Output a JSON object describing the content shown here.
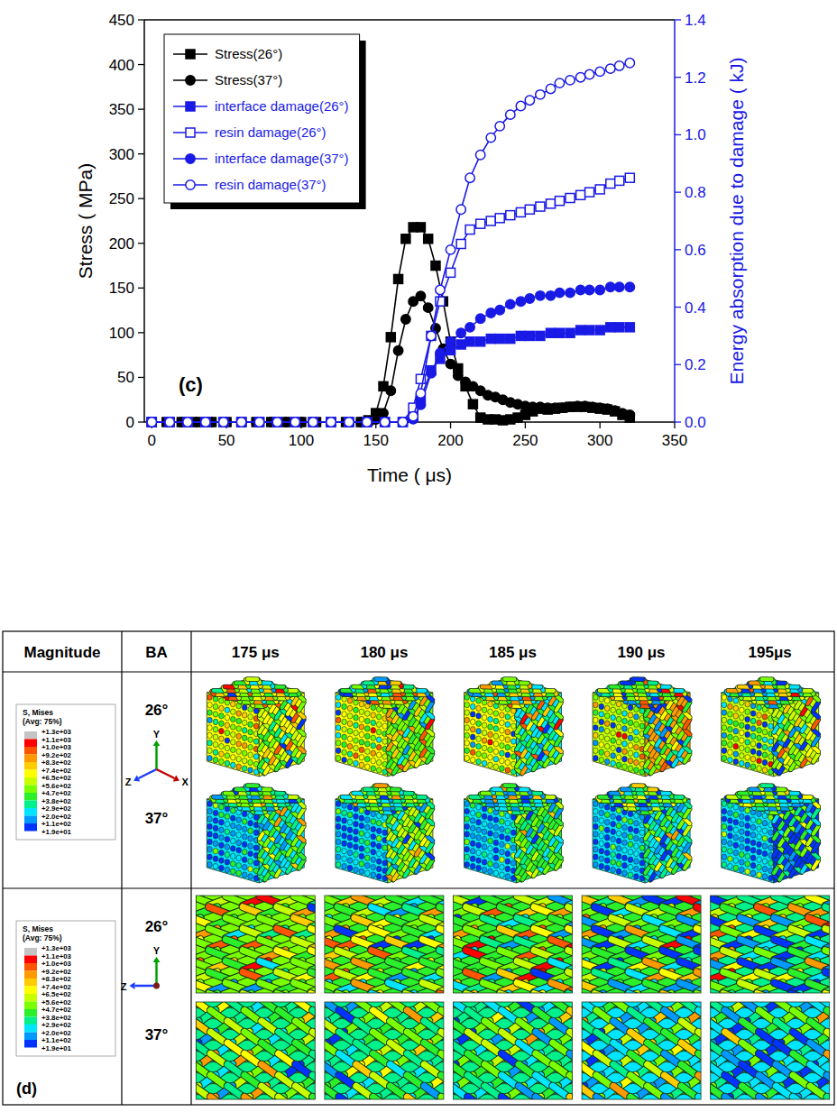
{
  "chart_data": {
    "type": "line",
    "panel_label": "(c)",
    "x_label": "Time ( μs)",
    "y_label": "Stress ( MPa)",
    "y2_label": "Energy absorption due to damage ( kJ)",
    "xlim": [
      -5,
      350
    ],
    "xticks": [
      0,
      50,
      100,
      150,
      200,
      250,
      300,
      350
    ],
    "ylim": [
      0,
      450
    ],
    "yticks": [
      0,
      50,
      100,
      150,
      200,
      250,
      300,
      350,
      400,
      450
    ],
    "y2lim": [
      0,
      1.4
    ],
    "y2ticks": [
      {
        "value": 0,
        "label": "0.0"
      },
      0.2,
      0.4,
      0.6,
      0.8,
      {
        "value": 1,
        "label": "1.0"
      },
      1.2,
      1.4
    ],
    "grid": false,
    "legend": "upper left",
    "series": [
      {
        "name": "Stress(26°)",
        "color": "#000000",
        "marker": "square",
        "x": [
          0,
          10,
          20,
          30,
          40,
          50,
          60,
          70,
          80,
          90,
          100,
          110,
          120,
          130,
          140,
          145,
          150,
          155,
          160,
          165,
          170,
          175,
          180,
          185,
          190,
          195,
          200,
          205,
          210,
          215,
          220,
          225,
          230,
          235,
          240,
          245,
          250,
          255,
          260,
          265,
          270,
          275,
          280,
          285,
          290,
          295,
          300,
          305,
          310,
          315,
          320
        ],
        "values": [
          0,
          0,
          0,
          0,
          0,
          0,
          0,
          0,
          0,
          0,
          0,
          0,
          0,
          0,
          0,
          2,
          10,
          40,
          95,
          160,
          205,
          218,
          218,
          205,
          175,
          135,
          90,
          60,
          40,
          20,
          5,
          3,
          3,
          2,
          3,
          5,
          8,
          12,
          15,
          14,
          15,
          16,
          17,
          17,
          17,
          16,
          15,
          14,
          12,
          8,
          5
        ]
      },
      {
        "name": "Stress(37°)",
        "color": "#000000",
        "marker": "circle",
        "x": [
          0,
          10,
          20,
          30,
          40,
          50,
          60,
          70,
          80,
          90,
          100,
          110,
          120,
          130,
          140,
          145,
          150,
          155,
          160,
          165,
          170,
          175,
          180,
          185,
          190,
          195,
          200,
          205,
          210,
          215,
          220,
          225,
          230,
          235,
          240,
          245,
          250,
          255,
          260,
          265,
          270,
          275,
          280,
          285,
          290,
          295,
          300,
          305,
          310,
          315,
          320
        ],
        "values": [
          0,
          0,
          0,
          0,
          0,
          0,
          0,
          0,
          0,
          0,
          0,
          0,
          0,
          0,
          0,
          1,
          3,
          10,
          35,
          80,
          115,
          135,
          141,
          128,
          105,
          82,
          65,
          52,
          45,
          40,
          35,
          30,
          28,
          25,
          22,
          20,
          18,
          17,
          17,
          16,
          16,
          16,
          17,
          18,
          18,
          17,
          16,
          15,
          13,
          10,
          8
        ]
      },
      {
        "name": "interface damage(26°)",
        "color": "#1a1ae6",
        "marker": "square",
        "axis": "y2",
        "x": [
          0,
          12,
          24,
          36,
          48,
          60,
          72,
          84,
          96,
          108,
          120,
          132,
          144,
          156,
          168,
          175,
          180,
          187,
          193,
          200,
          207,
          213,
          220,
          227,
          233,
          240,
          247,
          253,
          260,
          267,
          273,
          280,
          287,
          293,
          300,
          307,
          313,
          320
        ],
        "values": [
          0,
          0,
          0,
          0,
          0,
          0,
          0,
          0,
          0,
          0,
          0,
          0,
          0,
          0,
          0,
          0.02,
          0.08,
          0.18,
          0.22,
          0.25,
          0.27,
          0.28,
          0.28,
          0.29,
          0.29,
          0.29,
          0.3,
          0.3,
          0.3,
          0.31,
          0.31,
          0.31,
          0.32,
          0.32,
          0.32,
          0.33,
          0.33,
          0.33
        ]
      },
      {
        "name": "resin damage(26°)",
        "color": "#1a1ae6",
        "marker": "open-square",
        "axis": "y2",
        "x": [
          0,
          12,
          24,
          36,
          48,
          60,
          72,
          84,
          96,
          108,
          120,
          132,
          144,
          156,
          168,
          175,
          180,
          187,
          193,
          200,
          207,
          213,
          220,
          227,
          233,
          240,
          247,
          253,
          260,
          267,
          273,
          280,
          287,
          293,
          300,
          307,
          313,
          320
        ],
        "values": [
          0,
          0,
          0,
          0,
          0,
          0,
          0,
          0,
          0,
          0,
          0,
          0,
          0,
          0,
          0,
          0.05,
          0.15,
          0.3,
          0.42,
          0.52,
          0.62,
          0.67,
          0.69,
          0.7,
          0.71,
          0.72,
          0.73,
          0.74,
          0.75,
          0.76,
          0.77,
          0.78,
          0.79,
          0.8,
          0.81,
          0.83,
          0.84,
          0.85
        ]
      },
      {
        "name": "interface damage(37°)",
        "color": "#1a1ae6",
        "marker": "circle",
        "axis": "y2",
        "x": [
          0,
          12,
          24,
          36,
          48,
          60,
          72,
          84,
          96,
          108,
          120,
          132,
          144,
          156,
          168,
          175,
          180,
          187,
          193,
          200,
          207,
          213,
          220,
          227,
          233,
          240,
          247,
          253,
          260,
          267,
          273,
          280,
          287,
          293,
          300,
          307,
          313,
          320
        ],
        "values": [
          0,
          0,
          0,
          0,
          0,
          0,
          0,
          0,
          0,
          0,
          0,
          0,
          0,
          0,
          0,
          0.01,
          0.06,
          0.17,
          0.24,
          0.28,
          0.31,
          0.33,
          0.36,
          0.38,
          0.39,
          0.41,
          0.42,
          0.43,
          0.44,
          0.44,
          0.45,
          0.45,
          0.46,
          0.46,
          0.46,
          0.47,
          0.47,
          0.47
        ]
      },
      {
        "name": "resin damage(37°)",
        "color": "#1a1ae6",
        "marker": "open-circle",
        "axis": "y2",
        "x": [
          0,
          12,
          24,
          36,
          48,
          60,
          72,
          84,
          96,
          108,
          120,
          132,
          144,
          156,
          168,
          175,
          180,
          187,
          193,
          200,
          207,
          213,
          220,
          227,
          233,
          240,
          247,
          253,
          260,
          267,
          273,
          280,
          287,
          293,
          300,
          307,
          313,
          320
        ],
        "values": [
          0,
          0,
          0,
          0,
          0,
          0,
          0,
          0,
          0,
          0,
          0,
          0,
          0,
          0,
          0,
          0.02,
          0.1,
          0.3,
          0.46,
          0.6,
          0.74,
          0.85,
          0.93,
          0.99,
          1.03,
          1.07,
          1.1,
          1.12,
          1.14,
          1.16,
          1.18,
          1.19,
          1.2,
          1.21,
          1.22,
          1.23,
          1.24,
          1.25
        ]
      }
    ]
  },
  "table": {
    "panel_label": "(d)",
    "header": [
      "Magnitude",
      "BA",
      "175 μs",
      "180 μs",
      "185 μs",
      "190 μs",
      "195μs"
    ],
    "legend": {
      "title": "S, Mises",
      "subtitle": "(Avg: 75%)",
      "labels": [
        "+1.3e+03",
        "+1.1e+03",
        "+1.0e+03",
        "+9.2e+02",
        "+8.3e+02",
        "+7.4e+02",
        "+6.5e+02",
        "+5.6e+02",
        "+4.7e+02",
        "+3.8e+02",
        "+2.9e+02",
        "+2.0e+02",
        "+1.1e+02",
        "+1.9e+01"
      ],
      "colors": [
        "#c4c4c4",
        "#ff0000",
        "#ff5500",
        "#ff9900",
        "#ffcc00",
        "#ffff00",
        "#c8ff00",
        "#7aff00",
        "#2bef2b",
        "#00f08c",
        "#00e5ff",
        "#0099ff",
        "#0033ff"
      ]
    },
    "groups": [
      {
        "axes": [
          "Y",
          "Z",
          "X"
        ],
        "rows": [
          "26°",
          "37°"
        ]
      },
      {
        "axes": [
          "Y",
          "Z"
        ],
        "rows": [
          "26°",
          "37°"
        ]
      }
    ]
  }
}
